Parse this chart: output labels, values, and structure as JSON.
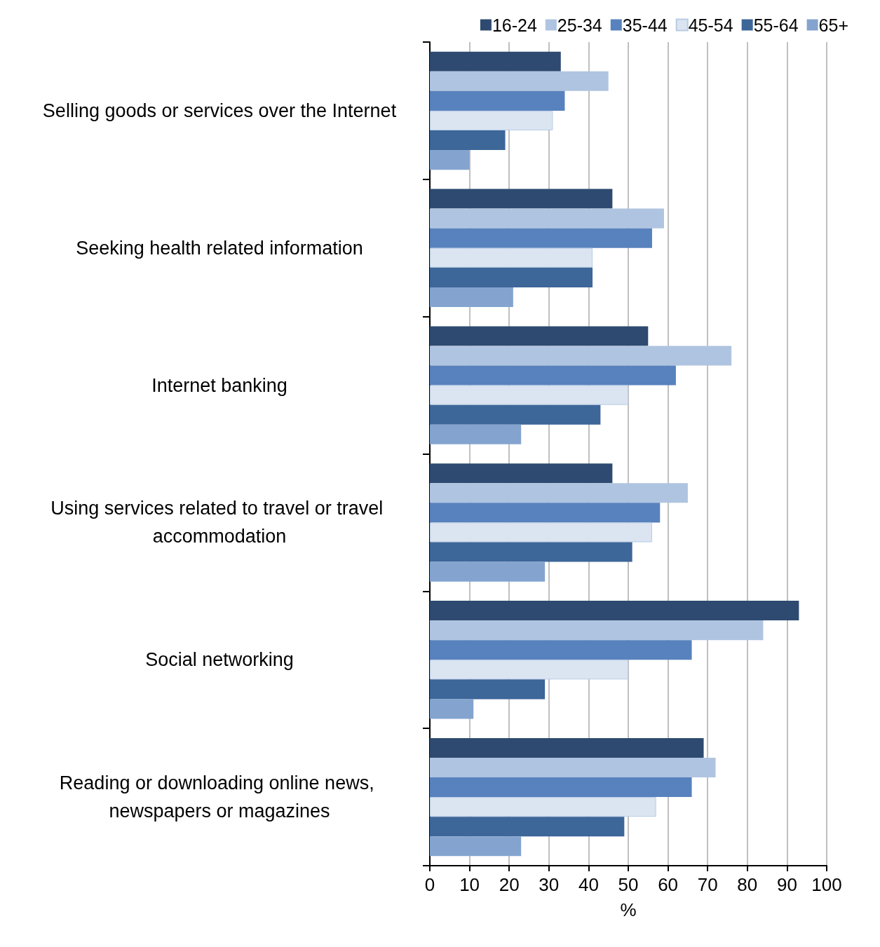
{
  "chart_data": {
    "type": "bar",
    "orientation": "horizontal",
    "xlabel": "%",
    "categories": [
      "Selling goods or services over the Internet",
      "Seeking health related information",
      "Internet banking",
      "Using services related to travel or travel accommodation",
      "Social networking",
      "Reading or downloading online news, newspapers or magazines"
    ],
    "series": [
      {
        "name": "16-24",
        "color": "#2e4a70",
        "values": [
          33,
          46,
          55,
          46,
          93,
          69
        ]
      },
      {
        "name": "25-34",
        "color": "#afc4e0",
        "values": [
          45,
          59,
          76,
          65,
          84,
          72
        ]
      },
      {
        "name": "35-44",
        "color": "#5882bd",
        "values": [
          34,
          56,
          62,
          58,
          66,
          66
        ]
      },
      {
        "name": "45-54",
        "color": "#dbe4f1",
        "values": [
          31,
          41,
          50,
          56,
          50,
          57
        ]
      },
      {
        "name": "55-64",
        "color": "#3d6699",
        "values": [
          19,
          41,
          43,
          51,
          29,
          49
        ]
      },
      {
        "name": "65+",
        "color": "#84a4cf",
        "values": [
          10,
          21,
          23,
          29,
          11,
          23
        ]
      }
    ],
    "xlim": [
      0,
      100
    ],
    "xticks": [
      0,
      10,
      20,
      30,
      40,
      50,
      60,
      70,
      80,
      90,
      100
    ],
    "grid": "x",
    "legend": "top right"
  }
}
